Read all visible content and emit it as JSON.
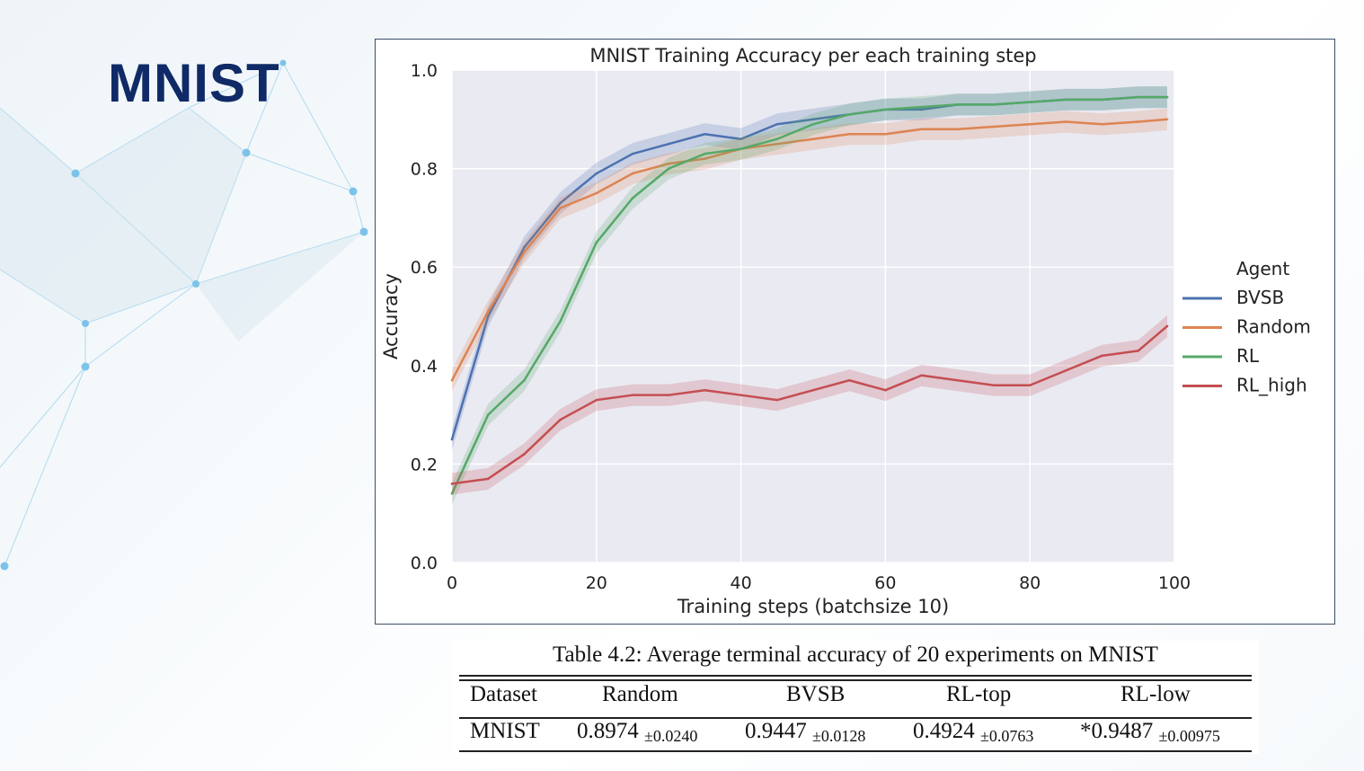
{
  "slide": {
    "title": "MNIST"
  },
  "chart_data": {
    "type": "line",
    "title": "MNIST Training Accuracy per each training step",
    "xlabel": "Training steps (batchsize 10)",
    "ylabel": "Accuracy",
    "xlim": [
      0,
      100
    ],
    "ylim": [
      0,
      1.0
    ],
    "x_ticks": [
      "0",
      "20",
      "40",
      "60",
      "80",
      "100"
    ],
    "y_ticks": [
      "0.0",
      "0.2",
      "0.4",
      "0.6",
      "0.8",
      "1.0"
    ],
    "grid": true,
    "legend_title": "Agent",
    "legend_placement": "right",
    "x": [
      0,
      5,
      10,
      15,
      20,
      25,
      30,
      35,
      40,
      45,
      50,
      55,
      60,
      65,
      70,
      75,
      80,
      85,
      90,
      95,
      99
    ],
    "series": [
      {
        "name": "BVSB",
        "color": "#4c72b0",
        "values": [
          0.25,
          0.5,
          0.64,
          0.73,
          0.79,
          0.83,
          0.85,
          0.87,
          0.86,
          0.89,
          0.9,
          0.91,
          0.92,
          0.92,
          0.93,
          0.93,
          0.935,
          0.94,
          0.94,
          0.945,
          0.945
        ]
      },
      {
        "name": "Random",
        "color": "#dd8452",
        "values": [
          0.37,
          0.51,
          0.63,
          0.72,
          0.75,
          0.79,
          0.81,
          0.82,
          0.84,
          0.85,
          0.86,
          0.87,
          0.87,
          0.88,
          0.88,
          0.885,
          0.89,
          0.895,
          0.89,
          0.895,
          0.9
        ]
      },
      {
        "name": "RL",
        "color": "#55a868",
        "values": [
          0.14,
          0.3,
          0.37,
          0.49,
          0.65,
          0.74,
          0.8,
          0.83,
          0.84,
          0.86,
          0.89,
          0.91,
          0.92,
          0.925,
          0.93,
          0.93,
          0.935,
          0.94,
          0.94,
          0.945,
          0.945
        ]
      },
      {
        "name": "RL_high",
        "color": "#c44e52",
        "values": [
          0.16,
          0.17,
          0.22,
          0.29,
          0.33,
          0.34,
          0.34,
          0.35,
          0.34,
          0.33,
          0.35,
          0.37,
          0.35,
          0.38,
          0.37,
          0.36,
          0.36,
          0.39,
          0.42,
          0.43,
          0.48
        ]
      }
    ]
  },
  "table": {
    "caption": "Table 4.2: Average terminal accuracy of 20 experiments on MNIST",
    "headers": [
      "Dataset",
      "Random",
      "BVSB",
      "RL-top",
      "RL-low"
    ],
    "row": {
      "dataset": "MNIST",
      "cells": [
        {
          "value": "0.8974",
          "pm": "±0.0240"
        },
        {
          "value": "0.9447",
          "pm": "±0.0128"
        },
        {
          "value": "0.4924",
          "pm": "±0.0763"
        },
        {
          "value": "*0.9487",
          "pm": "±0.00975"
        }
      ]
    }
  }
}
